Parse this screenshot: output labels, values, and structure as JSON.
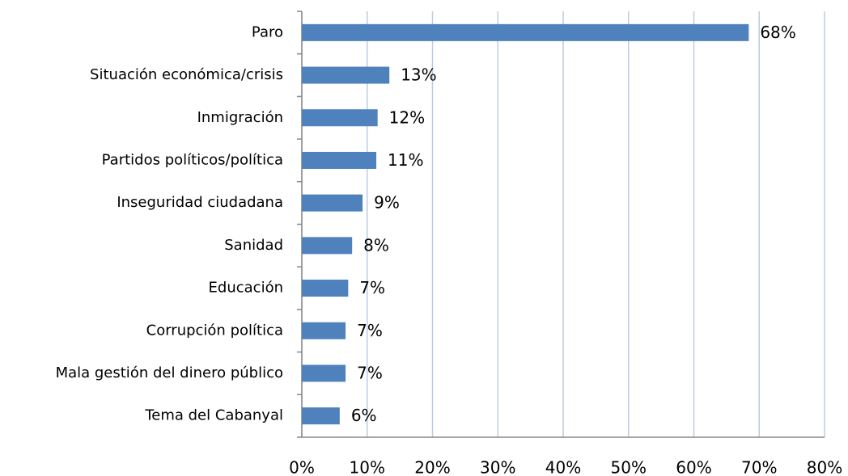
{
  "chart_data": {
    "type": "bar",
    "orientation": "horizontal",
    "categories": [
      "Paro",
      "Situación económica/crisis",
      "Inmigración",
      "Partidos políticos/política",
      "Inseguridad ciudadana",
      "Sanidad ",
      "Educación ",
      "Corrupción política",
      "Mala gestión del dinero público",
      "Tema del Cabanyal"
    ],
    "values": [
      68.4,
      13.4,
      11.6,
      11.4,
      9.3,
      7.7,
      7.1,
      6.7,
      6.7,
      5.8
    ],
    "value_labels": [
      "68%",
      "13%",
      "12%",
      "11%",
      "9%",
      "8%",
      "7%",
      "7%",
      "7%",
      "6%"
    ],
    "color": "#4f81bd",
    "xlim": [
      0,
      80
    ],
    "xticks": [
      {
        "value": 0,
        "label": "0%"
      },
      {
        "value": 10,
        "label": "10%"
      },
      {
        "value": 20,
        "label": "20%"
      },
      {
        "value": 30,
        "label": "30%"
      },
      {
        "value": 40,
        "label": "40%"
      },
      {
        "value": 50,
        "label": "50%"
      },
      {
        "value": 60,
        "label": "60%"
      },
      {
        "value": 70,
        "label": "70%"
      },
      {
        "value": 80,
        "label": "80%"
      }
    ],
    "grid": true
  }
}
